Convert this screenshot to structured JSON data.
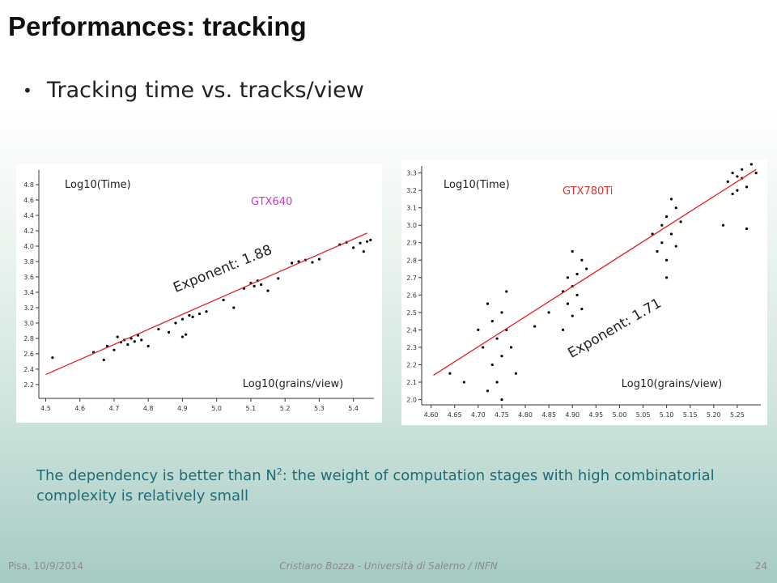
{
  "slide": {
    "title": "Performances: tracking",
    "bullet": "Tracking time vs. tracks/view",
    "note": {
      "before": "The dependency is better than N",
      "sup": "2",
      "after": ": the weight of computation stages with high combinatorial complexity is relatively small"
    },
    "footer": {
      "left": "Pisa, 10/9/2014",
      "center": "Cristiano Bozza - Università di Salerno / INFN",
      "page": "24"
    }
  },
  "chart_data": [
    {
      "type": "scatter",
      "y_label": "Log10(Time)",
      "x_label": "Log10(grains/view)",
      "device": "GTX640",
      "device_color": "#c040c0",
      "annotation": "Exponent: 1.88",
      "color": "#000000",
      "fit_color": "#e02020",
      "xlim": [
        4.48,
        5.46
      ],
      "ylim": [
        2.02,
        4.99
      ],
      "xticks": [
        4.5,
        4.6,
        4.7,
        4.8,
        4.9,
        {
          "value": 5,
          "label": "5.0"
        },
        5.1,
        5.2,
        5.3,
        5.4
      ],
      "yticks": [
        2.2,
        2.4,
        2.6,
        2.8,
        {
          "value": 3,
          "label": "3.0"
        },
        3.2,
        3.4,
        3.6,
        3.8,
        {
          "value": 4,
          "label": "4.0"
        },
        4.2,
        4.4,
        4.6,
        4.8
      ],
      "x": [
        4.52,
        4.64,
        4.67,
        4.68,
        4.7,
        4.71,
        4.72,
        4.73,
        4.74,
        4.75,
        4.76,
        4.77,
        4.78,
        4.8,
        4.83,
        4.86,
        4.88,
        4.9,
        4.91,
        4.92,
        4.93,
        4.95,
        4.9,
        4.97,
        5.02,
        5.05,
        5.08,
        5.1,
        5.11,
        5.12,
        5.13,
        5.15,
        5.18,
        5.22,
        5.24,
        5.26,
        5.28,
        5.3,
        5.36,
        5.38,
        5.4,
        5.42,
        5.44,
        5.43,
        5.45
      ],
      "values": [
        2.55,
        2.62,
        2.52,
        2.7,
        2.65,
        2.82,
        2.75,
        2.78,
        2.72,
        2.8,
        2.76,
        2.84,
        2.78,
        2.7,
        2.92,
        2.88,
        3.0,
        3.05,
        2.85,
        3.1,
        3.08,
        3.12,
        2.82,
        3.15,
        3.3,
        3.2,
        3.45,
        3.52,
        3.48,
        3.55,
        3.5,
        3.42,
        3.58,
        3.78,
        3.8,
        3.82,
        3.79,
        3.83,
        4.02,
        4.05,
        3.98,
        4.04,
        4.06,
        3.93,
        4.08
      ],
      "fit": {
        "x": [
          4.5,
          5.44
        ],
        "y": [
          2.33,
          4.17
        ]
      }
    },
    {
      "type": "scatter",
      "y_label": "Log10(Time)",
      "x_label": "Log10(grains/view)",
      "device": "GTX780Ti",
      "device_color": "#e03030",
      "annotation": "Exponent: 1.71",
      "color": "#000000",
      "fit_color": "#e02020",
      "xlim": [
        4.58,
        5.3
      ],
      "ylim": [
        1.97,
        3.34
      ],
      "xticks": [
        {
          "value": 4.6,
          "label": "4.60"
        },
        4.65,
        {
          "value": 4.7,
          "label": "4.70"
        },
        4.75,
        {
          "value": 4.8,
          "label": "4.80"
        },
        4.85,
        {
          "value": 4.9,
          "label": "4.90"
        },
        4.95,
        {
          "value": 5,
          "label": "5.00"
        },
        5.05,
        {
          "value": 5.1,
          "label": "5.10"
        },
        5.15,
        {
          "value": 5.2,
          "label": "5.20"
        },
        5.25
      ],
      "yticks": [
        {
          "value": 2,
          "label": "2.0"
        },
        2.1,
        2.2,
        2.3,
        2.4,
        2.5,
        2.6,
        2.7,
        2.8,
        2.9,
        {
          "value": 3,
          "label": "3.0"
        },
        3.1,
        3.2,
        3.3
      ],
      "x": [
        4.72,
        4.73,
        4.74,
        4.75,
        4.76,
        4.73,
        4.77,
        4.74,
        4.75,
        4.76,
        4.72,
        4.75,
        4.71,
        4.78,
        4.7,
        4.64,
        4.67,
        4.88,
        4.89,
        4.9,
        4.91,
        4.92,
        4.9,
        4.89,
        4.91,
        4.93,
        4.88,
        4.92,
        4.9,
        4.85,
        4.82,
        5.08,
        5.09,
        5.1,
        5.11,
        5.12,
        5.09,
        5.1,
        5.11,
        5.13,
        5.07,
        5.12,
        5.1,
        5.23,
        5.24,
        5.25,
        5.26,
        5.27,
        5.28,
        5.25,
        5.26,
        5.29,
        5.24,
        5.22,
        5.27
      ],
      "values": [
        2.05,
        2.2,
        2.35,
        2.5,
        2.62,
        2.45,
        2.3,
        2.1,
        2.25,
        2.4,
        2.55,
        2.0,
        2.3,
        2.15,
        2.4,
        2.15,
        2.1,
        2.4,
        2.55,
        2.65,
        2.72,
        2.8,
        2.48,
        2.7,
        2.6,
        2.75,
        2.62,
        2.52,
        2.85,
        2.5,
        2.42,
        2.85,
        3.0,
        3.05,
        2.95,
        3.1,
        2.9,
        2.8,
        3.15,
        3.02,
        2.95,
        2.88,
        2.7,
        3.25,
        3.3,
        3.28,
        3.32,
        3.22,
        3.35,
        3.2,
        3.27,
        3.3,
        3.18,
        3.0,
        2.98
      ],
      "fit": {
        "x": [
          4.605,
          5.29
        ],
        "y": [
          2.14,
          3.32
        ]
      }
    }
  ]
}
